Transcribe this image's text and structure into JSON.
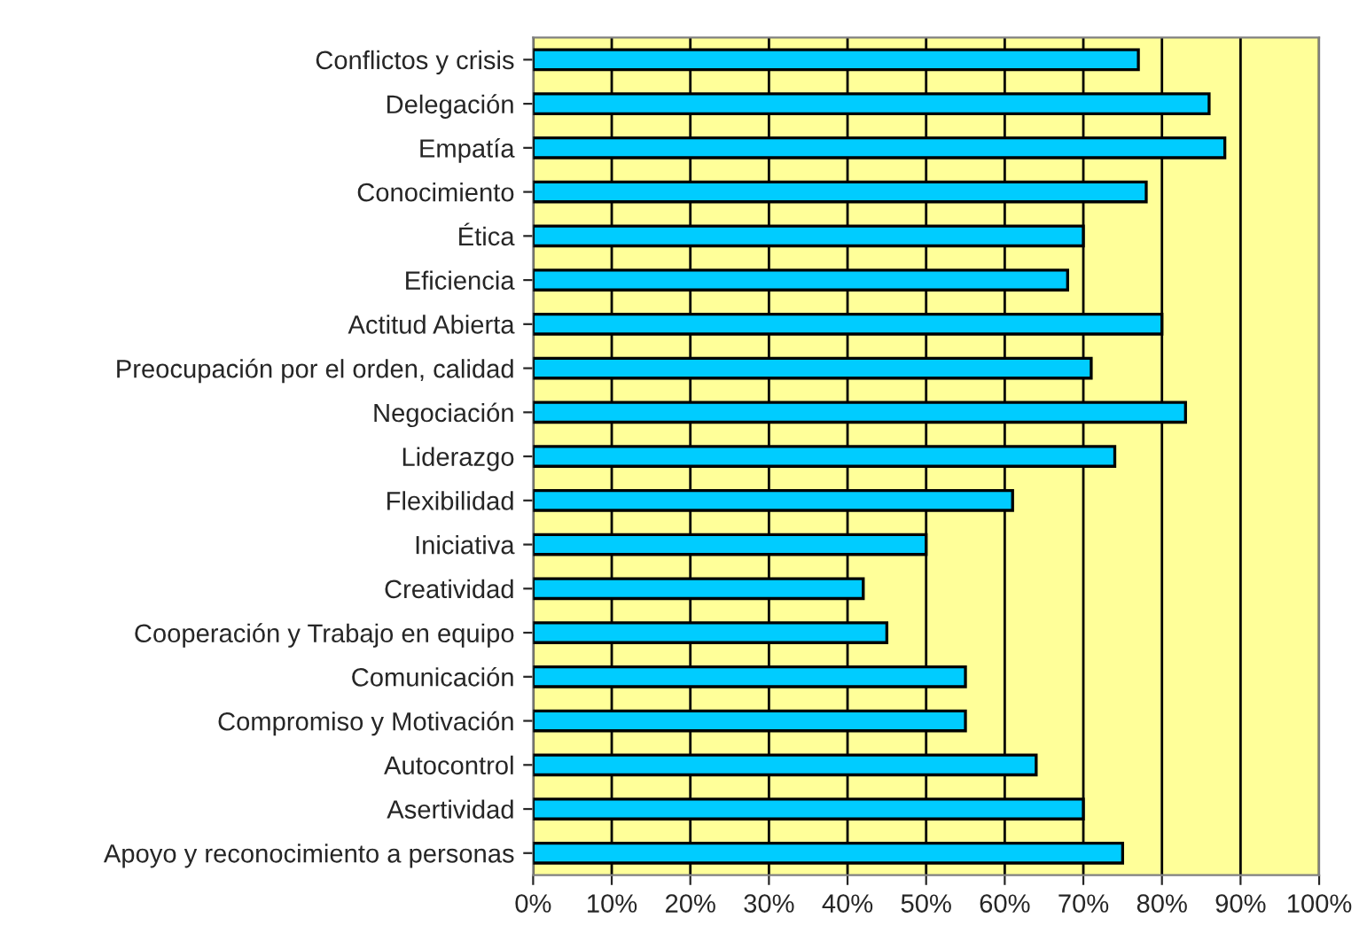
{
  "chart_data": {
    "type": "bar",
    "orientation": "horizontal",
    "categories": [
      "Conflictos y crisis",
      "Delegación",
      "Empatía",
      "Conocimiento",
      "Ética",
      "Eficiencia",
      "Actitud Abierta",
      "Preocupación por el orden, calidad",
      "Negociación",
      "Liderazgo",
      "Flexibilidad",
      "Iniciativa",
      "Creatividad",
      "Cooperación y Trabajo en equipo",
      "Comunicación",
      "Compromiso y Motivación",
      "Autocontrol",
      "Asertividad",
      "Apoyo y reconocimiento a personas"
    ],
    "values": [
      77,
      86,
      88,
      78,
      70,
      68,
      80,
      71,
      83,
      74,
      61,
      50,
      42,
      45,
      55,
      55,
      64,
      70,
      75
    ],
    "color": "#00ccff",
    "xlim": [
      0,
      100
    ],
    "xticks": [
      {
        "value": 0,
        "label": "0%"
      },
      {
        "value": 10,
        "label": "10%"
      },
      {
        "value": 20,
        "label": "20%"
      },
      {
        "value": 30,
        "label": "30%"
      },
      {
        "value": 40,
        "label": "40%"
      },
      {
        "value": 50,
        "label": "50%"
      },
      {
        "value": 60,
        "label": "60%"
      },
      {
        "value": 70,
        "label": "70%"
      },
      {
        "value": 80,
        "label": "80%"
      },
      {
        "value": 90,
        "label": "90%"
      },
      {
        "value": 100,
        "label": "100%"
      }
    ],
    "grid": "x"
  }
}
